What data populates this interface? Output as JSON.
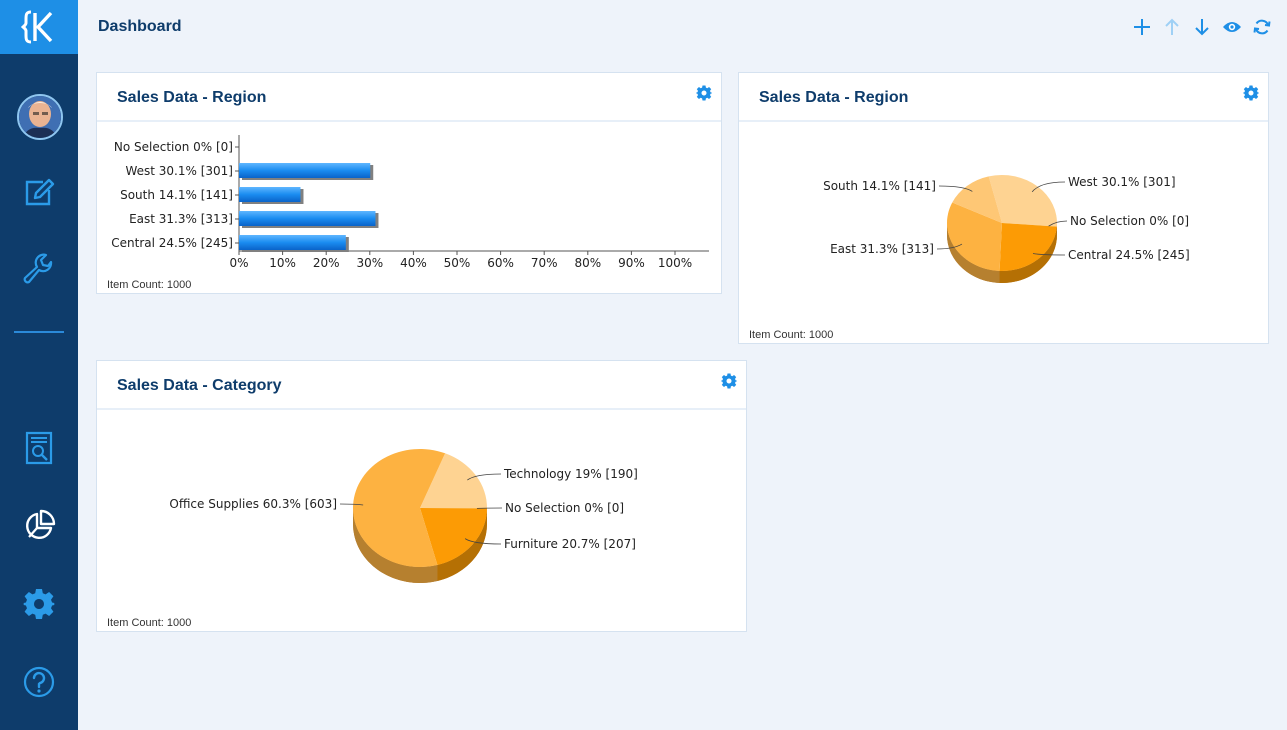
{
  "header": {
    "title": "Dashboard"
  },
  "toolbar": {
    "icons": [
      "plus-icon",
      "arrow-up-icon",
      "arrow-down-icon",
      "eye-icon",
      "refresh-icon"
    ]
  },
  "sidebar": {
    "icons": [
      "logo-icon",
      "avatar",
      "edit-icon",
      "wrench-icon",
      "report-search-icon",
      "pie-chart-icon",
      "settings-gear-icon",
      "help-icon"
    ]
  },
  "colors": {
    "sidebar": "#0e3c6b",
    "accent": "#1e8fe6",
    "bar_fill": "#1a8cf0",
    "pie_light": "#fed392",
    "pie_mid": "#fdb241",
    "pie_dark": "#fc9b05"
  },
  "panels": [
    {
      "title": "Sales Data - Region",
      "item_count_label": "Item Count:",
      "item_count_value": "1000",
      "chart_data": {
        "type": "bar",
        "orientation": "horizontal",
        "categories": [
          "No Selection 0% [0]",
          "West 30.1% [301]",
          "South 14.1% [141]",
          "East 31.3% [313]",
          "Central 24.5% [245]"
        ],
        "values": [
          0,
          30.1,
          14.1,
          31.3,
          24.5
        ],
        "xticks": [
          "0%",
          "10%",
          "20%",
          "30%",
          "40%",
          "50%",
          "60%",
          "70%",
          "80%",
          "90%",
          "100%"
        ],
        "xlim": [
          0,
          100
        ],
        "grid": false,
        "legend": "none"
      }
    },
    {
      "title": "Sales Data - Region",
      "item_count_label": "Item Count:",
      "item_count_value": "1000",
      "chart_data": {
        "type": "pie",
        "style": "3d",
        "labels": [
          "West 30.1% [301]",
          "No Selection 0% [0]",
          "Central 24.5% [245]",
          "East 31.3% [313]",
          "South 14.1% [141]"
        ],
        "values": [
          30.1,
          0,
          24.5,
          31.3,
          14.1
        ],
        "colors": [
          "#fed392",
          "#fc9b05",
          "#fc9b05",
          "#fdb241",
          "#fec775"
        ]
      }
    },
    {
      "title": "Sales Data - Category",
      "item_count_label": "Item Count:",
      "item_count_value": "1000",
      "chart_data": {
        "type": "pie",
        "style": "3d",
        "labels": [
          "Technology 19% [190]",
          "No Selection 0% [0]",
          "Furniture 20.7% [207]",
          "Office Supplies 60.3% [603]"
        ],
        "values": [
          19,
          0,
          20.7,
          60.3
        ],
        "colors": [
          "#fed392",
          "#fc9b05",
          "#fc9b05",
          "#fdb241"
        ]
      }
    }
  ]
}
